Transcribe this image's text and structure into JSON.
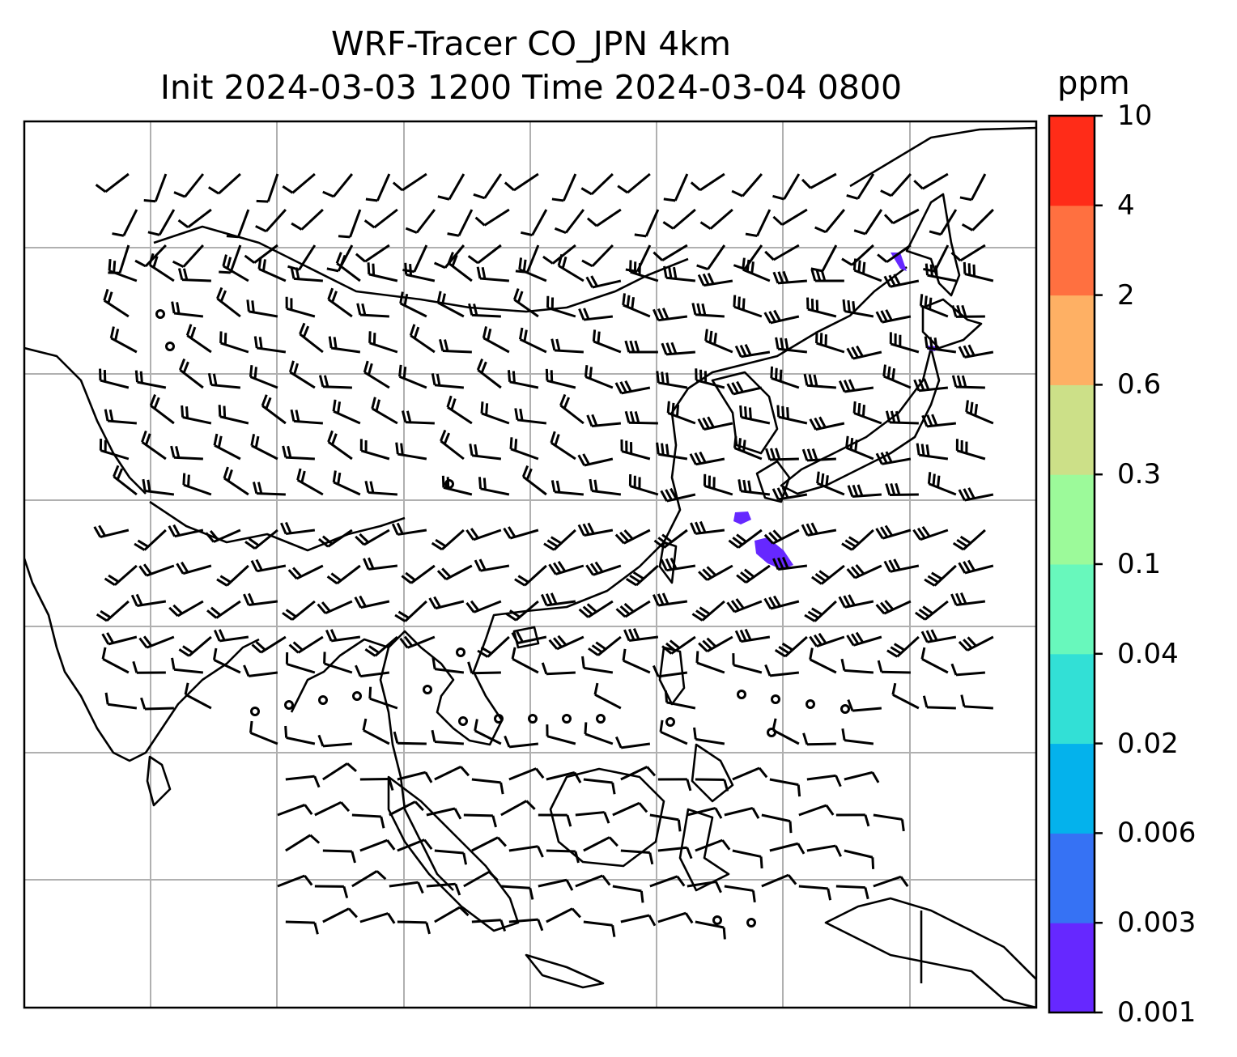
{
  "title": {
    "line1": "WRF-Tracer CO_JPN 4km",
    "line2": "Init 2024-03-03 1200 Time 2024-03-04 0800"
  },
  "colorbar": {
    "unit": "ppm",
    "levels": [
      "0.001",
      "0.003",
      "0.006",
      "0.02",
      "0.04",
      "0.1",
      "0.3",
      "0.6",
      "2",
      "4",
      "10"
    ],
    "colors": [
      "#6628ff",
      "#3672f4",
      "#04b2ec",
      "#32e0d6",
      "#68f8bc",
      "#9cfa9a",
      "#cce088",
      "#feb064",
      "#ff7040",
      "#ff2c18"
    ]
  },
  "map": {
    "gridlines": true,
    "coastline_color": "#000000",
    "tracer_color": "#6628ff"
  }
}
